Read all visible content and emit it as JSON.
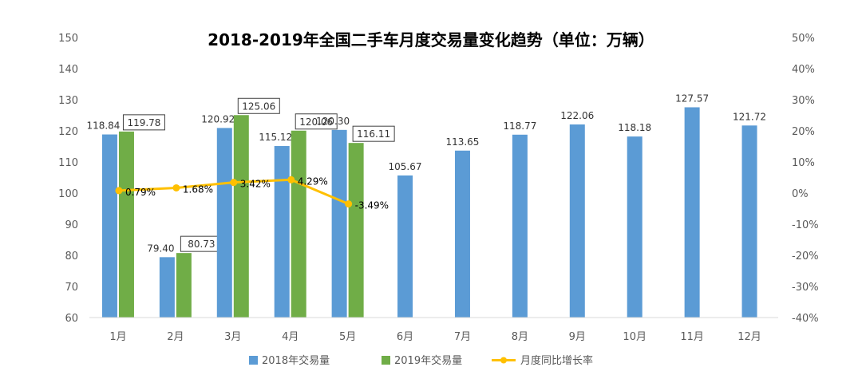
{
  "chart_data": {
    "type": "bar",
    "title": "2018-2019年全国二手车月度交易量变化趋势（单位：万辆）",
    "categories": [
      "1月",
      "2月",
      "3月",
      "4月",
      "5月",
      "6月",
      "7月",
      "8月",
      "9月",
      "10月",
      "11月",
      "12月"
    ],
    "series": [
      {
        "name": "2018年交易量",
        "type": "bar",
        "color": "#5B9BD5",
        "values": [
          118.84,
          79.4,
          120.92,
          115.12,
          120.3,
          105.67,
          113.65,
          118.77,
          122.06,
          118.18,
          127.57,
          121.72
        ]
      },
      {
        "name": "2019年交易量",
        "type": "bar",
        "color": "#70AD47",
        "values": [
          119.78,
          80.73,
          125.06,
          120.06,
          116.11,
          null,
          null,
          null,
          null,
          null,
          null,
          null
        ]
      },
      {
        "name": "月度同比增长率",
        "type": "line",
        "axis": "right",
        "color": "#FFC000",
        "values": [
          0.79,
          1.68,
          3.42,
          4.29,
          -3.49,
          null,
          null,
          null,
          null,
          null,
          null,
          null
        ],
        "labels": [
          "0.79%",
          "1.68%",
          "3.42%",
          "4.29%",
          "-3.49%"
        ]
      }
    ],
    "y_left": {
      "range": [
        60,
        150
      ],
      "step": 10
    },
    "y_right": {
      "range": [
        -40,
        50
      ],
      "step": 10,
      "unit": "%"
    },
    "left_ticks": [
      "60",
      "70",
      "80",
      "90",
      "100",
      "110",
      "120",
      "130",
      "140",
      "150"
    ],
    "right_ticks": [
      "-40%",
      "-30%",
      "-20%",
      "-10%",
      "0%",
      "10%",
      "20%",
      "30%",
      "40%",
      "50%"
    ],
    "value_labels_2018": [
      "118.84",
      "79.40",
      "120.92",
      "115.12",
      "120.30",
      "105.67",
      "113.65",
      "118.77",
      "122.06",
      "118.18",
      "127.57",
      "121.72"
    ],
    "value_labels_2019": [
      "119.78",
      "80.73",
      "125.06",
      "120.06",
      "116.11"
    ],
    "grid": false,
    "legend_position": "bottom-center"
  }
}
